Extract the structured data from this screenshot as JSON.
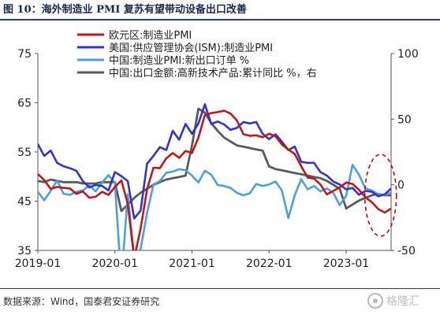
{
  "figure_title": "图 10：海外制造业 PMI 复苏有望带动设备出口改善",
  "source": "数据来源：Wind，国泰君安证券研究",
  "watermark": "格隆汇",
  "colors": {
    "eu": "#c0161c",
    "us": "#3333cc",
    "china_pmi": "#4f9fd8",
    "china_export": "#5a5a5a",
    "ellipse": "#d40000",
    "rule": "#2c3e66"
  },
  "chart_data": {
    "type": "line",
    "x_ticks": [
      "2019-01",
      "2020-01",
      "2021-01",
      "2022-01",
      "2023-01"
    ],
    "y_left": {
      "range": [
        35,
        75
      ],
      "ticks": [
        "35",
        "45",
        "55",
        "65",
        "75"
      ]
    },
    "y_right": {
      "range": [
        -50,
        100
      ],
      "ticks": [
        "-50",
        "0",
        "50",
        "100"
      ]
    },
    "grid": false,
    "legend_position": "top-center",
    "series": [
      {
        "name": "欧元区:制造业PMI",
        "axis": "left",
        "color_key": "eu",
        "points": [
          [
            "2019-01",
            50.5
          ],
          [
            "2019-02",
            49.3
          ],
          [
            "2019-03",
            47.5
          ],
          [
            "2019-04",
            47.9
          ],
          [
            "2019-05",
            47.7
          ],
          [
            "2019-06",
            47.6
          ],
          [
            "2019-07",
            46.5
          ],
          [
            "2019-08",
            47.0
          ],
          [
            "2019-09",
            45.7
          ],
          [
            "2019-10",
            45.9
          ],
          [
            "2019-11",
            46.9
          ],
          [
            "2019-12",
            46.3
          ],
          [
            "2020-01",
            47.9
          ],
          [
            "2020-02",
            49.2
          ],
          [
            "2020-03",
            44.5
          ],
          [
            "2020-04",
            33.4
          ],
          [
            "2020-05",
            39.4
          ],
          [
            "2020-06",
            47.4
          ],
          [
            "2020-07",
            51.8
          ],
          [
            "2020-08",
            51.7
          ],
          [
            "2020-09",
            53.7
          ],
          [
            "2020-10",
            54.8
          ],
          [
            "2020-11",
            53.8
          ],
          [
            "2020-12",
            55.2
          ],
          [
            "2021-01",
            54.8
          ],
          [
            "2021-02",
            57.9
          ],
          [
            "2021-03",
            62.5
          ],
          [
            "2021-04",
            62.9
          ],
          [
            "2021-05",
            63.1
          ],
          [
            "2021-06",
            63.4
          ],
          [
            "2021-07",
            62.8
          ],
          [
            "2021-08",
            61.4
          ],
          [
            "2021-09",
            58.6
          ],
          [
            "2021-10",
            58.3
          ],
          [
            "2021-11",
            58.4
          ],
          [
            "2021-12",
            58.0
          ],
          [
            "2022-01",
            58.7
          ],
          [
            "2022-02",
            58.2
          ],
          [
            "2022-03",
            56.5
          ],
          [
            "2022-04",
            55.5
          ],
          [
            "2022-05",
            54.6
          ],
          [
            "2022-06",
            52.1
          ],
          [
            "2022-07",
            49.8
          ],
          [
            "2022-08",
            49.6
          ],
          [
            "2022-09",
            48.4
          ],
          [
            "2022-10",
            46.4
          ],
          [
            "2022-11",
            47.1
          ],
          [
            "2022-12",
            47.8
          ],
          [
            "2023-01",
            48.8
          ],
          [
            "2023-02",
            48.5
          ],
          [
            "2023-03",
            47.3
          ],
          [
            "2023-04",
            45.8
          ],
          [
            "2023-05",
            44.8
          ],
          [
            "2023-06",
            43.4
          ],
          [
            "2023-07",
            42.7
          ],
          [
            "2023-08",
            43.5
          ]
        ]
      },
      {
        "name": "美国:供应管理协会(ISM):制造业PMI",
        "axis": "left",
        "color_key": "us",
        "points": [
          [
            "2019-01",
            56.6
          ],
          [
            "2019-02",
            54.2
          ],
          [
            "2019-03",
            55.3
          ],
          [
            "2019-04",
            52.8
          ],
          [
            "2019-05",
            52.1
          ],
          [
            "2019-06",
            51.7
          ],
          [
            "2019-07",
            51.2
          ],
          [
            "2019-08",
            49.1
          ],
          [
            "2019-09",
            47.8
          ],
          [
            "2019-10",
            48.3
          ],
          [
            "2019-11",
            48.1
          ],
          [
            "2019-12",
            47.2
          ],
          [
            "2020-01",
            50.9
          ],
          [
            "2020-02",
            50.1
          ],
          [
            "2020-03",
            49.1
          ],
          [
            "2020-04",
            41.5
          ],
          [
            "2020-05",
            43.1
          ],
          [
            "2020-06",
            52.6
          ],
          [
            "2020-07",
            54.2
          ],
          [
            "2020-08",
            56.0
          ],
          [
            "2020-09",
            55.4
          ],
          [
            "2020-10",
            59.3
          ],
          [
            "2020-11",
            57.5
          ],
          [
            "2020-12",
            60.7
          ],
          [
            "2021-01",
            58.7
          ],
          [
            "2021-02",
            60.8
          ],
          [
            "2021-03",
            64.7
          ],
          [
            "2021-04",
            60.7
          ],
          [
            "2021-05",
            61.2
          ],
          [
            "2021-06",
            60.6
          ],
          [
            "2021-07",
            59.5
          ],
          [
            "2021-08",
            59.9
          ],
          [
            "2021-09",
            61.1
          ],
          [
            "2021-10",
            60.8
          ],
          [
            "2021-11",
            61.1
          ],
          [
            "2021-12",
            58.7
          ],
          [
            "2022-01",
            57.6
          ],
          [
            "2022-02",
            58.6
          ],
          [
            "2022-03",
            57.1
          ],
          [
            "2022-04",
            55.4
          ],
          [
            "2022-05",
            56.1
          ],
          [
            "2022-06",
            53.0
          ],
          [
            "2022-07",
            52.8
          ],
          [
            "2022-08",
            52.8
          ],
          [
            "2022-09",
            50.9
          ],
          [
            "2022-10",
            50.2
          ],
          [
            "2022-11",
            49.0
          ],
          [
            "2022-12",
            48.4
          ],
          [
            "2023-01",
            47.4
          ],
          [
            "2023-02",
            47.7
          ],
          [
            "2023-03",
            46.3
          ],
          [
            "2023-04",
            47.1
          ],
          [
            "2023-05",
            46.9
          ],
          [
            "2023-06",
            46.0
          ],
          [
            "2023-07",
            46.4
          ],
          [
            "2023-08",
            47.6
          ]
        ]
      },
      {
        "name": "中国:制造业PMI:新出口订单 %",
        "axis": "left",
        "color_key": "china_pmi",
        "points": [
          [
            "2019-01",
            46.9
          ],
          [
            "2019-02",
            45.2
          ],
          [
            "2019-03",
            47.1
          ],
          [
            "2019-04",
            49.2
          ],
          [
            "2019-05",
            46.5
          ],
          [
            "2019-06",
            46.3
          ],
          [
            "2019-07",
            46.9
          ],
          [
            "2019-08",
            47.2
          ],
          [
            "2019-09",
            48.2
          ],
          [
            "2019-10",
            47.0
          ],
          [
            "2019-11",
            48.8
          ],
          [
            "2019-12",
            50.3
          ],
          [
            "2020-01",
            48.7
          ],
          [
            "2020-02",
            28.7
          ],
          [
            "2020-03",
            46.4
          ],
          [
            "2020-04",
            33.5
          ],
          [
            "2020-05",
            35.3
          ],
          [
            "2020-06",
            42.6
          ],
          [
            "2020-07",
            48.4
          ],
          [
            "2020-08",
            49.1
          ],
          [
            "2020-09",
            50.8
          ],
          [
            "2020-10",
            51.0
          ],
          [
            "2020-11",
            51.5
          ],
          [
            "2020-12",
            51.3
          ],
          [
            "2021-01",
            50.2
          ],
          [
            "2021-02",
            48.8
          ],
          [
            "2021-03",
            51.2
          ],
          [
            "2021-04",
            50.4
          ],
          [
            "2021-05",
            48.3
          ],
          [
            "2021-06",
            48.1
          ],
          [
            "2021-07",
            47.7
          ],
          [
            "2021-08",
            46.7
          ],
          [
            "2021-09",
            46.2
          ],
          [
            "2021-10",
            46.6
          ],
          [
            "2021-11",
            48.5
          ],
          [
            "2021-12",
            48.1
          ],
          [
            "2022-01",
            48.4
          ],
          [
            "2022-02",
            49.0
          ],
          [
            "2022-03",
            47.2
          ],
          [
            "2022-04",
            41.6
          ],
          [
            "2022-05",
            46.2
          ],
          [
            "2022-06",
            49.5
          ],
          [
            "2022-07",
            47.4
          ],
          [
            "2022-08",
            48.1
          ],
          [
            "2022-09",
            47.0
          ],
          [
            "2022-10",
            47.6
          ],
          [
            "2022-11",
            46.7
          ],
          [
            "2022-12",
            44.2
          ],
          [
            "2023-01",
            46.1
          ],
          [
            "2023-02",
            52.4
          ],
          [
            "2023-03",
            50.4
          ],
          [
            "2023-04",
            47.6
          ],
          [
            "2023-05",
            47.2
          ],
          [
            "2023-06",
            46.4
          ],
          [
            "2023-07",
            46.3
          ],
          [
            "2023-08",
            46.7
          ]
        ]
      },
      {
        "name": "中国:出口金额:高新技术产品:累计同比 %，右",
        "axis": "right",
        "color_key": "china_export",
        "points": [
          [
            "2019-01",
            3
          ],
          [
            "2019-02",
            2
          ],
          [
            "2019-03",
            4
          ],
          [
            "2019-04",
            3
          ],
          [
            "2019-05",
            2
          ],
          [
            "2019-06",
            2
          ],
          [
            "2019-07",
            2
          ],
          [
            "2019-08",
            1
          ],
          [
            "2019-09",
            1
          ],
          [
            "2019-10",
            1
          ],
          [
            "2019-11",
            2
          ],
          [
            "2019-12",
            2
          ],
          [
            "2020-01",
            2
          ],
          [
            "2020-02",
            -20
          ],
          [
            "2020-03",
            -15
          ],
          [
            "2020-04",
            -10
          ],
          [
            "2020-05",
            -6
          ],
          [
            "2020-06",
            -3
          ],
          [
            "2020-07",
            0
          ],
          [
            "2020-08",
            2
          ],
          [
            "2020-09",
            4
          ],
          [
            "2020-10",
            5
          ],
          [
            "2020-11",
            6
          ],
          [
            "2020-12",
            7
          ],
          [
            "2021-01",
            30
          ],
          [
            "2021-02",
            58
          ],
          [
            "2021-03",
            55
          ],
          [
            "2021-04",
            47
          ],
          [
            "2021-05",
            41
          ],
          [
            "2021-06",
            36
          ],
          [
            "2021-07",
            33
          ],
          [
            "2021-08",
            30
          ],
          [
            "2021-09",
            29
          ],
          [
            "2021-10",
            28
          ],
          [
            "2021-11",
            27
          ],
          [
            "2021-12",
            26
          ],
          [
            "2022-01",
            14
          ],
          [
            "2022-02",
            12
          ],
          [
            "2022-03",
            11
          ],
          [
            "2022-04",
            10
          ],
          [
            "2022-05",
            9
          ],
          [
            "2022-06",
            8
          ],
          [
            "2022-07",
            7
          ],
          [
            "2022-08",
            6
          ],
          [
            "2022-09",
            5
          ],
          [
            "2022-10",
            3
          ],
          [
            "2022-11",
            0
          ],
          [
            "2022-12",
            -3
          ],
          [
            "2023-01",
            -18
          ],
          [
            "2023-02",
            -15
          ],
          [
            "2023-03",
            -12
          ],
          [
            "2023-04",
            -10
          ],
          [
            "2023-05",
            -8
          ],
          [
            "2023-06",
            -7
          ],
          [
            "2023-07",
            -8
          ],
          [
            "2023-08",
            -8
          ]
        ]
      }
    ],
    "annotation": {
      "type": "ellipse",
      "around": "2023 end-of-series",
      "style": "dashed"
    }
  }
}
